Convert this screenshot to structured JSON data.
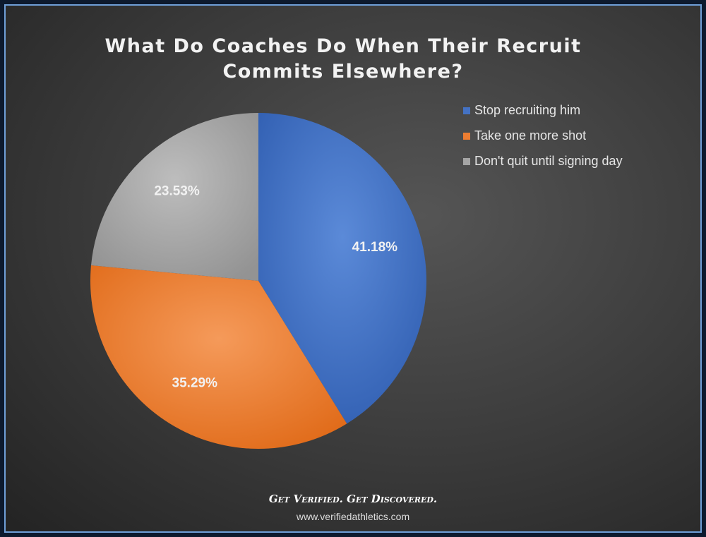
{
  "chart_data": {
    "type": "pie",
    "title": "What Do Coaches Do When Their Recruit Commits Elsewhere?",
    "categories": [
      "Stop recruiting him",
      "Take one more shot",
      "Don't quit until signing day"
    ],
    "values": [
      41.18,
      35.29,
      23.53
    ],
    "value_labels": [
      "41.18%",
      "35.29%",
      "23.53%"
    ],
    "colors": [
      "#4472c4",
      "#ed7d31",
      "#a5a5a5"
    ],
    "legend": "right"
  },
  "footer": {
    "tagline": "Get Verified. Get Discovered.",
    "url": "www.verifiedathletics.com"
  }
}
